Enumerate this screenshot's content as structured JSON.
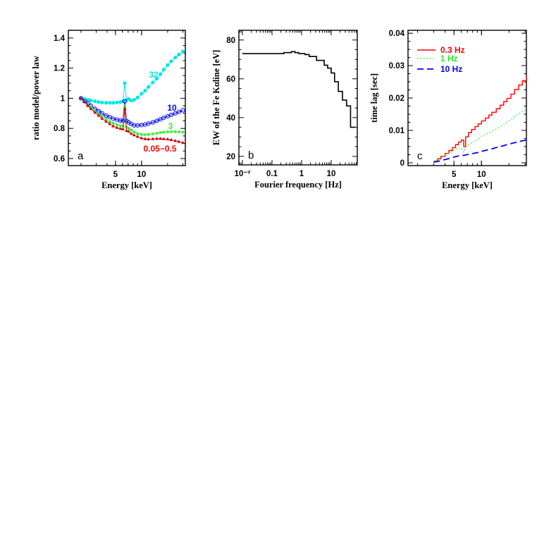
{
  "chart_data": [
    {
      "panel": "a",
      "type": "line",
      "xlabel": "Energy [keV]",
      "ylabel": "ratio model/power law",
      "xscale": "log",
      "xlim": [
        1.43,
        32
      ],
      "ylim": [
        0.553,
        1.451
      ],
      "xticks": [
        {
          "v": 5,
          "label": "5"
        },
        {
          "v": 10,
          "label": "10"
        }
      ],
      "yticks": [
        {
          "v": 0.6,
          "label": "0.6"
        },
        {
          "v": 0.8,
          "label": "0.8"
        },
        {
          "v": 1.0,
          "label": "1"
        },
        {
          "v": 1.2,
          "label": "1.2"
        },
        {
          "v": 1.4,
          "label": "1.4"
        }
      ],
      "x": [
        2,
        2.2,
        2.4,
        2.6,
        2.9,
        3.2,
        3.5,
        3.9,
        4.3,
        4.7,
        5.2,
        5.7,
        6.1,
        6.4,
        6.7,
        7.1,
        7.6,
        8.2,
        9,
        10,
        11,
        12,
        13.5,
        15,
        16.5,
        18,
        20,
        22,
        24.5,
        27,
        30
      ],
      "series": [
        {
          "name": "32",
          "color": "#00e6e6",
          "marker": "filled-circle",
          "values": [
            1.0,
            0.995,
            0.99,
            0.985,
            0.98,
            0.975,
            0.972,
            0.97,
            0.97,
            0.97,
            0.972,
            0.975,
            0.98,
            1.1,
            0.99,
            0.995,
            0.985,
            0.99,
            1.005,
            1.03,
            1.05,
            1.075,
            1.105,
            1.13,
            1.16,
            1.19,
            1.22,
            1.245,
            1.27,
            1.29,
            1.31
          ]
        },
        {
          "name": "10",
          "color": "#0000ff",
          "marker": "open-circle",
          "values": [
            1.0,
            0.98,
            0.965,
            0.95,
            0.93,
            0.915,
            0.9,
            0.885,
            0.875,
            0.865,
            0.858,
            0.852,
            0.85,
            0.98,
            0.85,
            0.84,
            0.83,
            0.82,
            0.82,
            0.822,
            0.826,
            0.832,
            0.84,
            0.85,
            0.86,
            0.87,
            0.88,
            0.89,
            0.9,
            0.91,
            0.92
          ]
        },
        {
          "name": "3",
          "color": "#33ee33",
          "marker": "cross",
          "values": [
            1.0,
            0.975,
            0.955,
            0.94,
            0.915,
            0.895,
            0.88,
            0.86,
            0.845,
            0.835,
            0.825,
            0.818,
            0.815,
            0.95,
            0.81,
            0.8,
            0.79,
            0.775,
            0.765,
            0.76,
            0.758,
            0.76,
            0.763,
            0.768,
            0.772,
            0.775,
            0.777,
            0.778,
            0.778,
            0.777,
            0.775
          ]
        },
        {
          "name": "0.05−0.5",
          "color": "#ff0000",
          "marker": "filled-triangle",
          "values": [
            1.0,
            0.975,
            0.95,
            0.93,
            0.905,
            0.885,
            0.865,
            0.845,
            0.83,
            0.815,
            0.805,
            0.798,
            0.795,
            0.93,
            0.785,
            0.78,
            0.765,
            0.755,
            0.745,
            0.735,
            0.73,
            0.728,
            0.73,
            0.732,
            0.732,
            0.73,
            0.728,
            0.724,
            0.718,
            0.712,
            0.705
          ]
        }
      ],
      "letter": "a"
    },
    {
      "panel": "b",
      "type": "line",
      "style": "step",
      "xlabel": "Fourier frequency [Hz]",
      "ylabel": "EW of the Fe Kαline [eV]",
      "xscale": "log",
      "xlim": [
        0.0076,
        76
      ],
      "ylim": [
        15.6,
        85
      ],
      "xticks": [
        {
          "v": 0.01,
          "label": "10⁻²"
        },
        {
          "v": 0.1,
          "label": "0.1"
        },
        {
          "v": 1,
          "label": "1"
        },
        {
          "v": 10,
          "label": "10"
        }
      ],
      "yticks": [
        {
          "v": 20,
          "label": "20"
        },
        {
          "v": 40,
          "label": "40"
        },
        {
          "v": 60,
          "label": "60"
        },
        {
          "v": 80,
          "label": "80"
        }
      ],
      "bin_edges": [
        0.01,
        0.25,
        0.45,
        0.6,
        0.8,
        1.3,
        1.8,
        3.2,
        5.8,
        7.6,
        10,
        13,
        17.4,
        24,
        33,
        45,
        64
      ],
      "values": [
        73,
        73.5,
        74,
        73.5,
        73,
        72.5,
        71.5,
        69.5,
        67,
        65.5,
        63,
        58.5,
        53.5,
        49,
        46,
        35
      ],
      "color": "#000000",
      "letter": "b"
    },
    {
      "panel": "c",
      "type": "line",
      "xlabel": "Energy [keV]",
      "ylabel": "time lag [sec]",
      "xscale": "log",
      "xlim": [
        1.57,
        31
      ],
      "ylim": [
        -0.00087,
        0.0409
      ],
      "xticks": [
        {
          "v": 5,
          "label": "5"
        },
        {
          "v": 10,
          "label": "10"
        }
      ],
      "yticks": [
        {
          "v": 0,
          "label": "0"
        },
        {
          "v": 0.01,
          "label": "0.01"
        },
        {
          "v": 0.02,
          "label": "0.02"
        },
        {
          "v": 0.03,
          "label": "0.03"
        },
        {
          "v": 0.04,
          "label": "0.04"
        }
      ],
      "x": [
        3,
        3.3,
        3.6,
        4,
        4.4,
        4.8,
        5.2,
        5.6,
        6.0,
        6.4,
        6.7,
        7.2,
        7.8,
        8.5,
        9.2,
        10,
        11,
        12,
        13,
        14.5,
        16,
        17.5,
        19,
        21,
        23,
        25.5,
        28,
        31
      ],
      "series": [
        {
          "name": "0.3 Hz",
          "color": "#ff0000",
          "linestyle": "solid-step",
          "values": [
            0.0005,
            0.0012,
            0.002,
            0.0029,
            0.0038,
            0.0047,
            0.0056,
            0.0064,
            0.007,
            0.005,
            0.008,
            0.0093,
            0.0103,
            0.0112,
            0.012,
            0.0129,
            0.0138,
            0.0147,
            0.0156,
            0.0167,
            0.0178,
            0.0189,
            0.0199,
            0.0212,
            0.0226,
            0.024,
            0.0253,
            0.0268
          ]
        },
        {
          "name": "1 Hz",
          "color": "#22ee22",
          "linestyle": "dotted",
          "values": [
            0.0005,
            0.001,
            0.0016,
            0.0023,
            0.003,
            0.0036,
            0.0041,
            0.0045,
            0.0046,
            0.0032,
            0.0047,
            0.0055,
            0.0062,
            0.0068,
            0.0074,
            0.0082,
            0.0088,
            0.0092,
            0.0097,
            0.0104,
            0.0111,
            0.0118,
            0.0125,
            0.0133,
            0.0142,
            0.0151,
            0.0158,
            0.0166
          ]
        },
        {
          "name": "10 Hz",
          "color": "#0000ff",
          "linestyle": "dashed",
          "values": [
            0.0002,
            0.0004,
            0.0007,
            0.001,
            0.0013,
            0.0016,
            0.0019,
            0.0021,
            0.0022,
            0.0023,
            0.0024,
            0.0026,
            0.0028,
            0.003,
            0.0032,
            0.0035,
            0.0038,
            0.0041,
            0.0043,
            0.0047,
            0.005,
            0.0053,
            0.0056,
            0.0059,
            0.0062,
            0.0065,
            0.0068,
            0.007
          ]
        }
      ],
      "legend": "top-left",
      "letter": "c"
    }
  ]
}
